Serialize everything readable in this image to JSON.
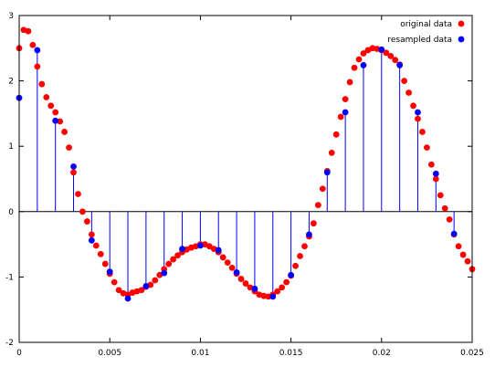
{
  "chart_data": {
    "type": "scatter",
    "title": "",
    "xlabel": "",
    "ylabel": "",
    "xlim": [
      0,
      0.025
    ],
    "ylim": [
      -2,
      3
    ],
    "xticks": [
      "0",
      "0.005",
      "0.01",
      "0.015",
      "0.02",
      "0.025"
    ],
    "xtick_values": [
      0,
      0.005,
      0.01,
      0.015,
      0.02,
      0.025
    ],
    "yticks": [
      "-2",
      "-1",
      "0",
      "1",
      "2",
      "3"
    ],
    "ytick_values": [
      -2,
      -1,
      0,
      1,
      2,
      3
    ],
    "grid": false,
    "legend_position": "top-right",
    "series": [
      {
        "name": "original data",
        "color": "#ff0000",
        "marker": "circle",
        "x": [
          0,
          0.00025,
          0.0005,
          0.00075,
          0.001,
          0.00125,
          0.0015,
          0.00175,
          0.002,
          0.00225,
          0.0025,
          0.00275,
          0.003,
          0.00325,
          0.0035,
          0.00375,
          0.004,
          0.00425,
          0.0045,
          0.00475,
          0.005,
          0.00525,
          0.0055,
          0.00575,
          0.006,
          0.00625,
          0.0065,
          0.00675,
          0.007,
          0.00725,
          0.0075,
          0.00775,
          0.008,
          0.00825,
          0.0085,
          0.00875,
          0.009,
          0.00925,
          0.0095,
          0.00975,
          0.01,
          0.01025,
          0.0105,
          0.01075,
          0.011,
          0.01125,
          0.0115,
          0.01175,
          0.012,
          0.01225,
          0.0125,
          0.01275,
          0.013,
          0.01325,
          0.0135,
          0.01375,
          0.014,
          0.01425,
          0.0145,
          0.01475,
          0.015,
          0.01525,
          0.0155,
          0.01575,
          0.016,
          0.01625,
          0.0165,
          0.01675,
          0.017,
          0.01725,
          0.0175,
          0.01775,
          0.018,
          0.01825,
          0.0185,
          0.01875,
          0.019,
          0.01925,
          0.0195,
          0.01975,
          0.02,
          0.02025,
          0.0205,
          0.02075,
          0.021,
          0.02125,
          0.0215,
          0.02175,
          0.022,
          0.02225,
          0.0225,
          0.02275,
          0.023,
          0.02325,
          0.0235,
          0.02375,
          0.024,
          0.02425,
          0.0245,
          0.02475,
          0.025
        ],
        "y": [
          2.5,
          2.78,
          2.76,
          2.55,
          2.22,
          1.95,
          1.75,
          1.62,
          1.52,
          1.38,
          1.22,
          0.98,
          0.6,
          0.27,
          0.0,
          -0.15,
          -0.35,
          -0.52,
          -0.65,
          -0.8,
          -0.95,
          -1.08,
          -1.2,
          -1.25,
          -1.27,
          -1.24,
          -1.22,
          -1.2,
          -1.15,
          -1.12,
          -1.05,
          -0.97,
          -0.88,
          -0.8,
          -0.73,
          -0.67,
          -0.62,
          -0.58,
          -0.55,
          -0.53,
          -0.5,
          -0.5,
          -0.53,
          -0.57,
          -0.62,
          -0.7,
          -0.78,
          -0.86,
          -0.95,
          -1.03,
          -1.1,
          -1.16,
          -1.22,
          -1.27,
          -1.29,
          -1.3,
          -1.27,
          -1.22,
          -1.16,
          -1.08,
          -0.98,
          -0.83,
          -0.68,
          -0.53,
          -0.38,
          -0.18,
          0.1,
          0.35,
          0.62,
          0.9,
          1.18,
          1.45,
          1.72,
          1.98,
          2.2,
          2.33,
          2.42,
          2.47,
          2.5,
          2.49,
          2.47,
          2.43,
          2.38,
          2.32,
          2.25,
          2.0,
          1.82,
          1.62,
          1.42,
          1.22,
          0.98,
          0.72,
          0.5,
          0.25,
          0.05,
          -0.12,
          -0.35,
          -0.53,
          -0.66,
          -0.76,
          -0.88
        ]
      },
      {
        "name": "resampled data",
        "color": "#0000ff",
        "marker": "circle",
        "stems": true,
        "x": [
          0,
          0.001,
          0.002,
          0.003,
          0.004,
          0.005,
          0.006,
          0.007,
          0.008,
          0.009,
          0.01,
          0.011,
          0.012,
          0.013,
          0.014,
          0.015,
          0.016,
          0.017,
          0.018,
          0.019,
          0.02,
          0.021,
          0.022,
          0.023,
          0.024
        ],
        "y": [
          1.74,
          2.47,
          1.39,
          0.69,
          -0.44,
          -0.92,
          -1.33,
          -1.14,
          -0.94,
          -0.57,
          -0.52,
          -0.59,
          -0.93,
          -1.18,
          -1.3,
          -0.97,
          -0.35,
          0.6,
          1.52,
          2.24,
          2.48,
          2.24,
          1.52,
          0.58,
          -0.34
        ]
      }
    ]
  }
}
